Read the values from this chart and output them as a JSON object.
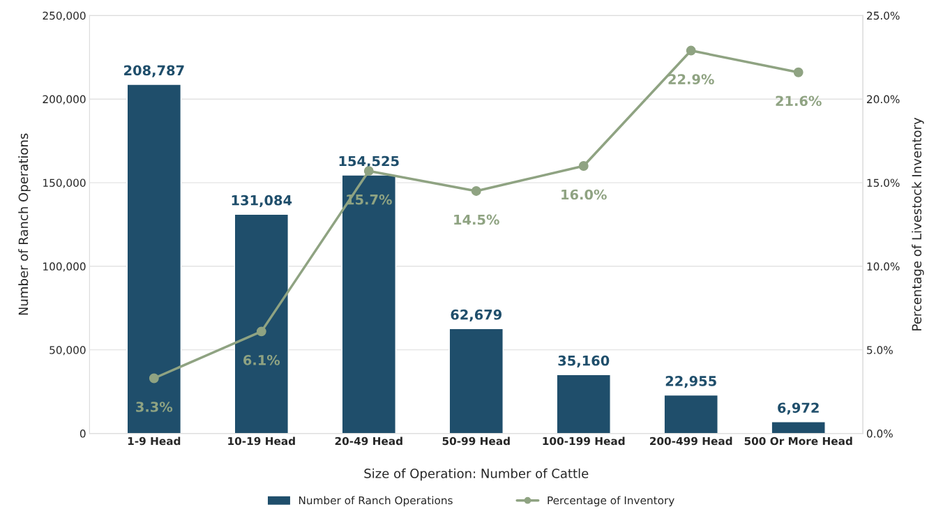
{
  "chart_data": {
    "type": "bar",
    "xlabel": "Size of Operation: Number of Cattle",
    "ylabel": "Number of Ranch Operations",
    "y2label": "Percentage of Livestock Inventory",
    "categories": [
      "1-9 Head",
      "10-19 Head",
      "20-49 Head",
      "50-99 Head",
      "100-199 Head",
      "200-499 Head",
      "500 Or More Head"
    ],
    "series": [
      {
        "name": "Number of Ranch Operations",
        "color": "#1f4e6b",
        "values": [
          208787,
          131084,
          154525,
          62679,
          35160,
          22955,
          6972
        ],
        "value_labels": [
          "208,787",
          "131,084",
          "154,525",
          "62,679",
          "35,160",
          "22,955",
          "6,972"
        ]
      },
      {
        "name": "Percentage of Inventory",
        "type": "line",
        "axis": "y2",
        "marker": "circle",
        "color": "#8fa382",
        "values": [
          3.3,
          6.1,
          15.7,
          14.5,
          16.0,
          22.9,
          21.6
        ],
        "value_labels": [
          "3.3%",
          "6.1%",
          "15.7%",
          "14.5%",
          "16.0%",
          "22.9%",
          "21.6%"
        ]
      }
    ],
    "ylim": [
      0,
      250000
    ],
    "yticks": [
      {
        "value": 0,
        "label": "0"
      },
      {
        "value": 50000,
        "label": "50,000"
      },
      {
        "value": 100000,
        "label": "100,000"
      },
      {
        "value": 150000,
        "label": "150,000"
      },
      {
        "value": 200000,
        "label": "200,000"
      },
      {
        "value": 250000,
        "label": "250,000"
      }
    ],
    "y2lim": [
      0,
      25
    ],
    "y2ticks": [
      {
        "value": 0,
        "label": "0.0%"
      },
      {
        "value": 5,
        "label": "5.0%"
      },
      {
        "value": 10,
        "label": "10.0%"
      },
      {
        "value": 15,
        "label": "15.0%"
      },
      {
        "value": 20,
        "label": "20.0%"
      },
      {
        "value": 25,
        "label": "25.0%"
      }
    ],
    "grid": "y",
    "legend": "bottom"
  }
}
